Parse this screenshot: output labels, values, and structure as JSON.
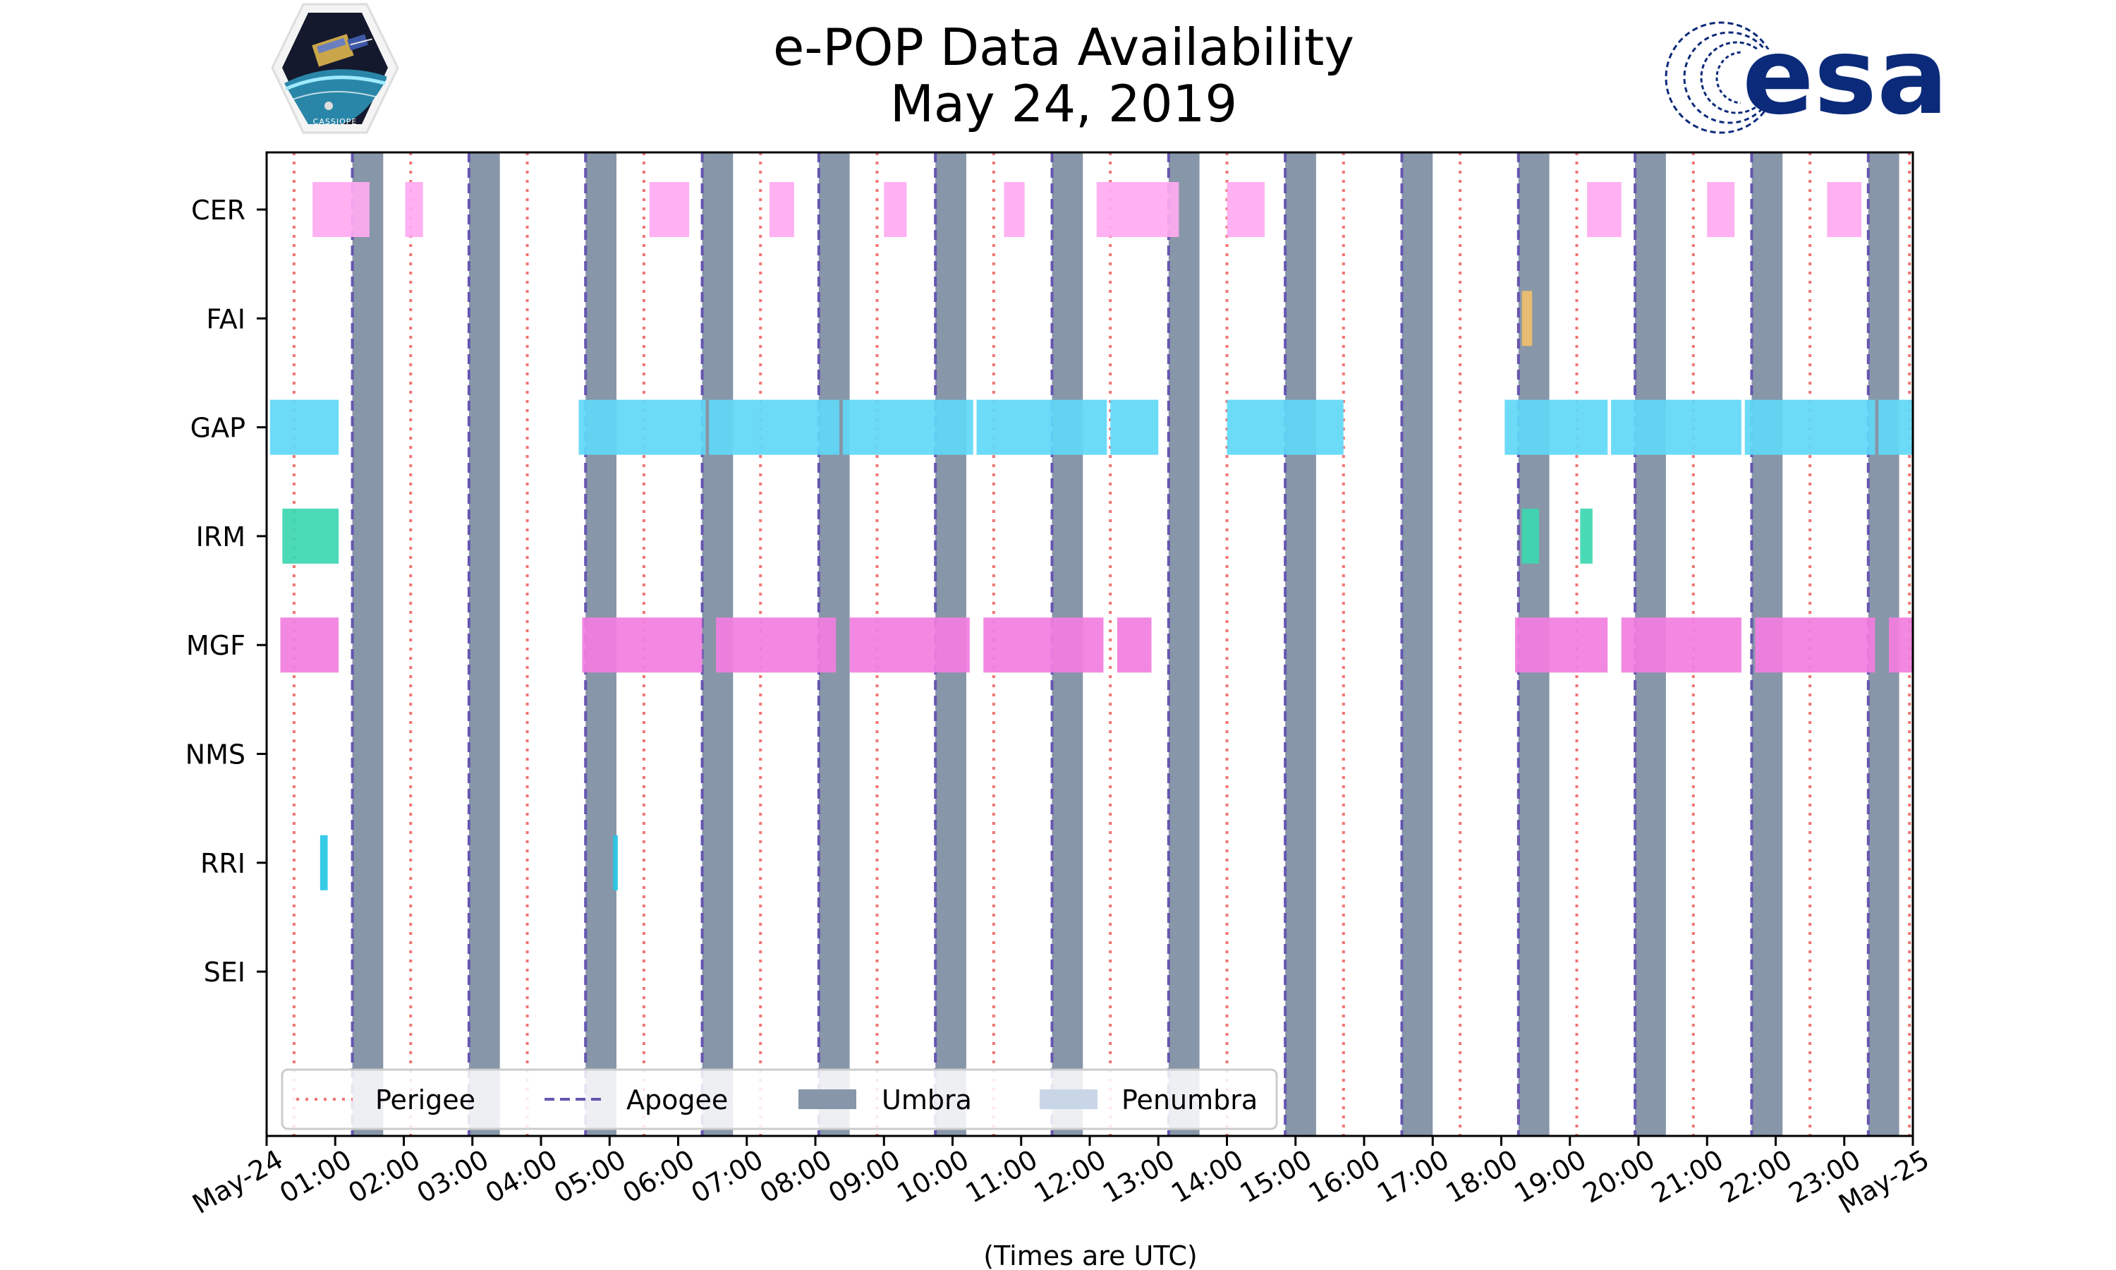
{
  "logos": {
    "left_name": "CASSIOPE",
    "right_name": "esa"
  },
  "chart_data": {
    "type": "timeline",
    "title": [
      "e-POP Data Availability",
      "May 24, 2019"
    ],
    "xlabel": "(Times are UTC)",
    "xlim": [
      0,
      24
    ],
    "x_ticks": [
      {
        "v": 0,
        "label": "May-24"
      },
      {
        "v": 1,
        "label": "01:00"
      },
      {
        "v": 2,
        "label": "02:00"
      },
      {
        "v": 3,
        "label": "03:00"
      },
      {
        "v": 4,
        "label": "04:00"
      },
      {
        "v": 5,
        "label": "05:00"
      },
      {
        "v": 6,
        "label": "06:00"
      },
      {
        "v": 7,
        "label": "07:00"
      },
      {
        "v": 8,
        "label": "08:00"
      },
      {
        "v": 9,
        "label": "09:00"
      },
      {
        "v": 10,
        "label": "10:00"
      },
      {
        "v": 11,
        "label": "11:00"
      },
      {
        "v": 12,
        "label": "12:00"
      },
      {
        "v": 13,
        "label": "13:00"
      },
      {
        "v": 14,
        "label": "14:00"
      },
      {
        "v": 15,
        "label": "15:00"
      },
      {
        "v": 16,
        "label": "16:00"
      },
      {
        "v": 17,
        "label": "17:00"
      },
      {
        "v": 18,
        "label": "18:00"
      },
      {
        "v": 19,
        "label": "19:00"
      },
      {
        "v": 20,
        "label": "20:00"
      },
      {
        "v": 21,
        "label": "21:00"
      },
      {
        "v": 22,
        "label": "22:00"
      },
      {
        "v": 23,
        "label": "23:00"
      },
      {
        "v": 24,
        "label": "May-25"
      }
    ],
    "instruments": [
      "CER",
      "FAI",
      "GAP",
      "IRM",
      "MGF",
      "NMS",
      "RRI",
      "SEI"
    ],
    "instrument_colors": {
      "CER": "#ffaaf1",
      "FAI": "#f0bf6e",
      "GAP": "#5fd8f7",
      "IRM": "#3cd7b0",
      "MGF": "#f27ee0",
      "NMS": "#999999",
      "RRI": "#27c7e6",
      "SEI": "#999999"
    },
    "intervals": {
      "CER": [
        [
          0.67,
          1.5
        ],
        [
          2.02,
          2.28
        ],
        [
          5.58,
          6.16
        ],
        [
          7.33,
          7.69
        ],
        [
          9.0,
          9.33
        ],
        [
          10.75,
          11.05
        ],
        [
          12.1,
          13.3
        ],
        [
          14.0,
          14.55
        ],
        [
          19.25,
          19.75
        ],
        [
          21.0,
          21.4
        ],
        [
          22.75,
          23.25
        ]
      ],
      "FAI": [
        [
          18.3,
          18.45
        ]
      ],
      "GAP": [
        [
          0.05,
          1.05
        ],
        [
          4.55,
          6.4
        ],
        [
          6.45,
          8.35
        ],
        [
          8.4,
          10.3
        ],
        [
          10.35,
          12.25
        ],
        [
          12.3,
          13.0
        ],
        [
          14.0,
          15.7
        ],
        [
          18.05,
          19.55
        ],
        [
          19.6,
          21.5
        ],
        [
          21.55,
          23.45
        ],
        [
          23.5,
          24.0
        ]
      ],
      "IRM": [
        [
          0.23,
          1.05
        ],
        [
          18.3,
          18.55
        ],
        [
          19.15,
          19.33
        ]
      ],
      "MGF": [
        [
          0.2,
          1.05
        ],
        [
          4.6,
          6.35
        ],
        [
          6.55,
          8.3
        ],
        [
          8.5,
          10.25
        ],
        [
          10.45,
          12.2
        ],
        [
          12.4,
          12.9
        ],
        [
          18.2,
          19.55
        ],
        [
          19.75,
          21.5
        ],
        [
          21.7,
          23.45
        ],
        [
          23.65,
          24.0
        ]
      ],
      "NMS": [],
      "RRI": [
        [
          0.78,
          0.89
        ],
        [
          5.05,
          5.12
        ]
      ],
      "SEI": []
    },
    "umbra": [
      [
        1.25,
        1.7
      ],
      [
        2.95,
        3.4
      ],
      [
        4.65,
        5.1
      ],
      [
        6.35,
        6.8
      ],
      [
        8.05,
        8.5
      ],
      [
        9.75,
        10.2
      ],
      [
        11.45,
        11.9
      ],
      [
        13.15,
        13.6
      ],
      [
        14.85,
        15.3
      ],
      [
        16.55,
        17.0
      ],
      [
        18.25,
        18.7
      ],
      [
        19.95,
        20.4
      ],
      [
        21.65,
        22.1
      ],
      [
        23.35,
        23.8
      ]
    ],
    "apogee": [
      1.25,
      2.95,
      4.65,
      6.35,
      8.05,
      9.75,
      11.45,
      13.15,
      14.85,
      16.55,
      18.25,
      19.95,
      21.65,
      23.35
    ],
    "perigee": [
      0.4,
      2.1,
      3.8,
      5.5,
      7.2,
      8.9,
      10.6,
      12.3,
      14.0,
      15.7,
      17.4,
      19.1,
      20.8,
      22.5,
      23.95
    ],
    "legend": [
      "Perigee",
      "Apogee",
      "Umbra",
      "Penumbra"
    ],
    "colors": {
      "perigee": "#f27474",
      "apogee": "#6655b0",
      "umbra": "#8796a8",
      "penumbra": "#c9d6e7",
      "axis": "#000000",
      "legend_bg": "#ffffff",
      "legend_border": "#cccccc"
    }
  }
}
